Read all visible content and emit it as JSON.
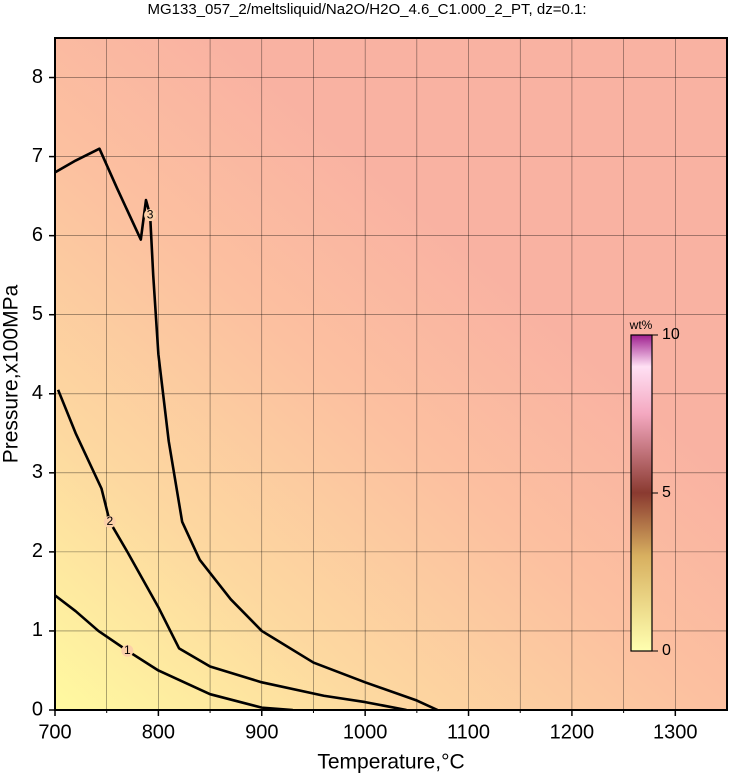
{
  "chart_data": {
    "type": "contour",
    "title": "MG133_057_2/meltsliquid/Na2O/H2O_4.6_C1.000_2_PT, dz=0.1:",
    "x_label": "Temperature,°C",
    "y_label": "Pressure,x100MPa",
    "xlim": [
      700,
      1350
    ],
    "ylim": [
      0,
      8.5
    ],
    "xticks": [
      700,
      800,
      900,
      1000,
      1100,
      1200,
      1300
    ],
    "x_minor_ticks": [
      750,
      850,
      950,
      1050,
      1150,
      1250
    ],
    "yticks": [
      0,
      1,
      2,
      3,
      4,
      5,
      6,
      7,
      8
    ],
    "grid": true,
    "contours": [
      {
        "level": 1,
        "x": [
          700,
          720,
          742,
          770,
          800,
          850,
          900,
          930
        ],
        "y": [
          1.45,
          1.25,
          1.0,
          0.75,
          0.5,
          0.2,
          0.03,
          0
        ]
      },
      {
        "level": 2,
        "x": [
          703,
          720,
          745,
          753,
          770,
          800,
          820,
          850,
          900,
          960,
          1000,
          1040
        ],
        "y": [
          4.05,
          3.5,
          2.8,
          2.38,
          2.0,
          1.3,
          0.78,
          0.55,
          0.35,
          0.18,
          0.1,
          0
        ]
      },
      {
        "level": 3,
        "x": [
          700,
          720,
          743,
          760,
          783,
          788,
          792,
          795,
          800,
          810,
          823,
          840,
          870,
          900,
          950,
          1000,
          1050,
          1070
        ],
        "y": [
          6.8,
          6.95,
          7.1,
          6.6,
          5.95,
          6.45,
          6.26,
          5.5,
          4.5,
          3.4,
          2.38,
          1.9,
          1.4,
          1.0,
          0.6,
          0.35,
          0.12,
          0
        ]
      }
    ],
    "colorbar": {
      "label": "wt%",
      "lim": [
        0,
        10
      ],
      "ticks": [
        0,
        5,
        10
      ]
    }
  }
}
